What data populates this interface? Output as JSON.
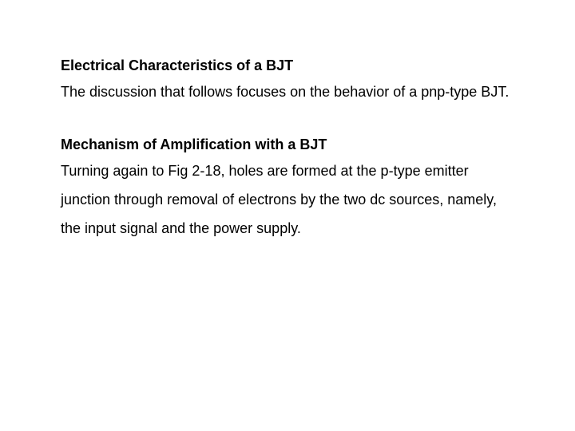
{
  "section1": {
    "heading": "Electrical Characteristics of a BJT",
    "body": " The discussion that follows focuses on the behavior of a pnp-type BJT."
  },
  "section2": {
    "heading": "Mechanism of Amplification with a BJT",
    "body": " Turning again to Fig 2-18, holes are formed at the p-type emitter junction through removal of electrons by the two dc sources, namely, the input signal and the power supply."
  },
  "colors": {
    "background": "#ffffff",
    "text": "#000000"
  },
  "typography": {
    "heading_fontsize": 18,
    "heading_weight": "bold",
    "body_fontsize": 18,
    "line_height": 2.0
  }
}
